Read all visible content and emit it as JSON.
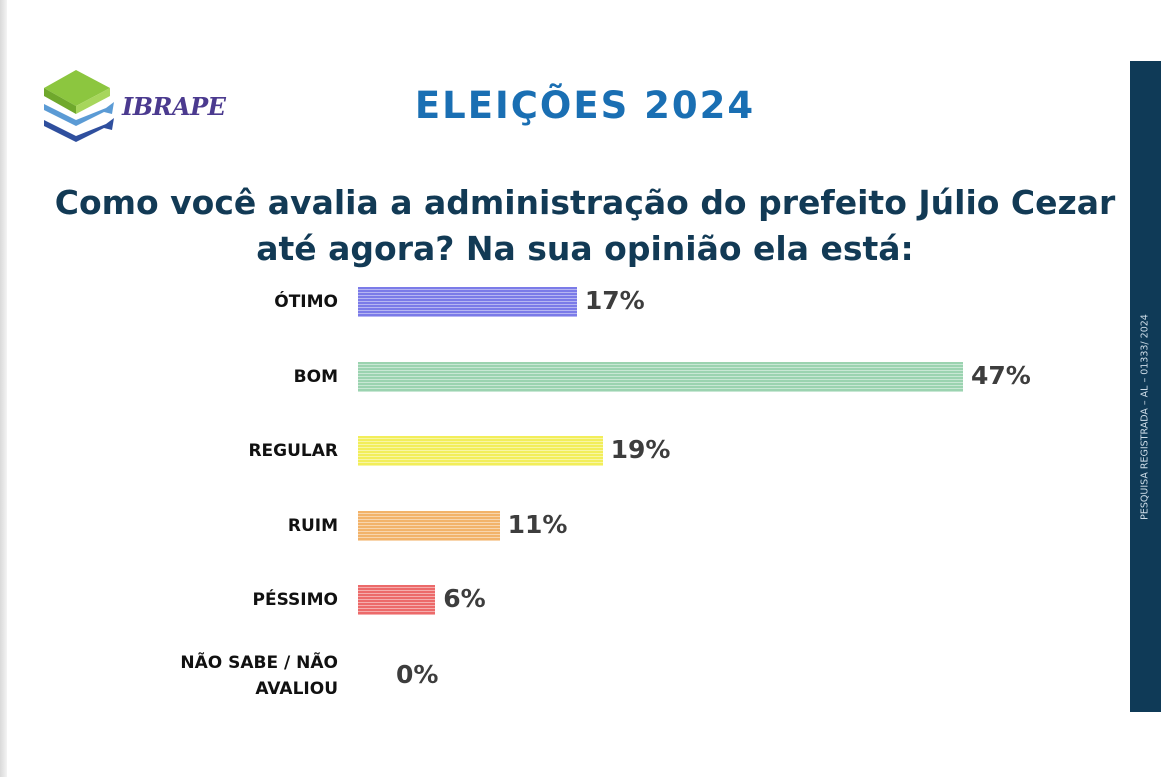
{
  "brand": {
    "name": "IBRAPE",
    "logo_colors": [
      "#8cc63f",
      "#5b9bd5",
      "#2f4f9e"
    ]
  },
  "header": {
    "title": "ELEIÇÕES 2024"
  },
  "question": {
    "line1": "Como você avalia a administração do prefeito Júlio Cezar",
    "line2": "até agora? Na sua opinião ela está:"
  },
  "side_band": {
    "text": "PESQUISA REGISTRADA – AL – 01333/ 2024"
  },
  "chart_data": {
    "type": "bar",
    "orientation": "horizontal",
    "categories": [
      "ÓTIMO",
      "BOM",
      "REGULAR",
      "RUIM",
      "PÉSSIMO",
      "NÃO SABE / NÃO AVALIOU"
    ],
    "values": [
      17,
      47,
      19,
      11,
      6,
      0
    ],
    "value_labels": [
      "17%",
      "47%",
      "19%",
      "11%",
      "6%",
      "0%"
    ],
    "colors": [
      "#7b7be8",
      "#9bd3b0",
      "#f2ee5a",
      "#f2b36a",
      "#ec6a6a",
      "#cccccc"
    ],
    "unit": "%",
    "grid": false,
    "legend": "none"
  }
}
